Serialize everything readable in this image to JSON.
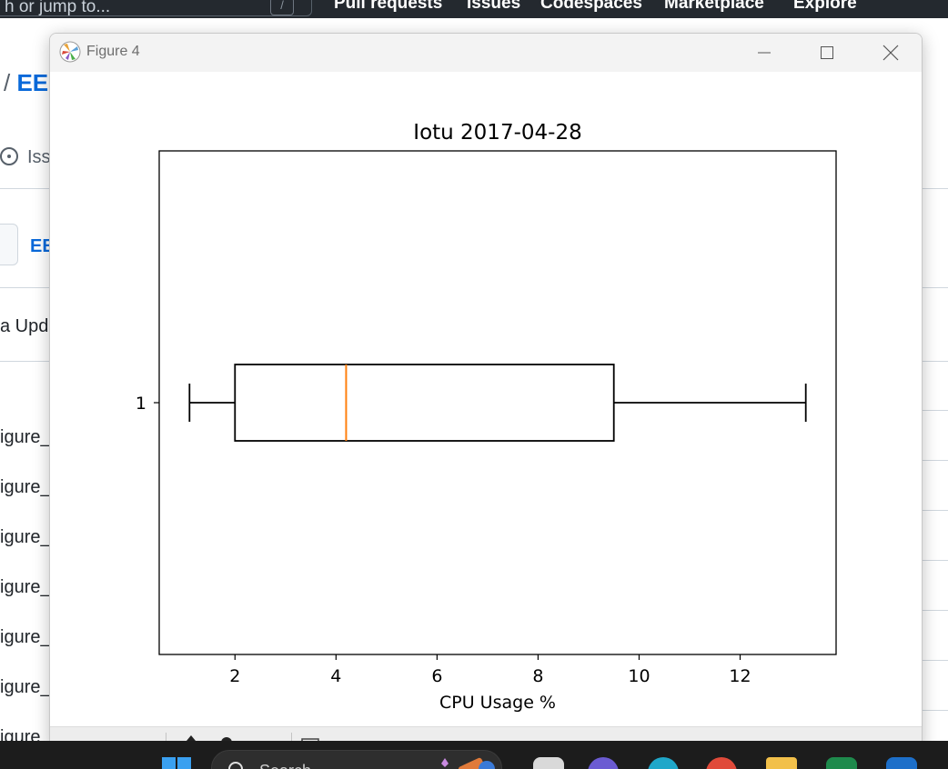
{
  "github": {
    "search_text": "h or jump to...",
    "search_key": "/",
    "nav": [
      "Pull requests",
      "Issues",
      "Codespaces",
      "Marketplace",
      "Explore"
    ],
    "breadcrumb_sep": "/",
    "breadcrumb_repo": "EE",
    "issues_tab": "Iss",
    "branch_link": "EE",
    "commit_message": "a Upda",
    "files": [
      "igure_",
      "igure_",
      "igure_",
      "igure_",
      "igure_",
      "igure_",
      "igure_"
    ]
  },
  "figure_window": {
    "title": "Figure 4"
  },
  "chart_data": {
    "type": "boxplot",
    "orientation": "horizontal",
    "title": "Iotu 2017-04-28",
    "xlabel": "CPU Usage %",
    "ylabel": "",
    "xlim": [
      0.5,
      13.9
    ],
    "xticks": [
      2,
      4,
      6,
      8,
      10,
      12
    ],
    "yticks": [
      "1"
    ],
    "series": [
      {
        "label": "1",
        "whisker_low": 1.1,
        "q1": 2.0,
        "median": 4.2,
        "q3": 9.5,
        "whisker_high": 13.3
      }
    ],
    "colors": {
      "box": "#000000",
      "median": "#ff7f0e"
    },
    "grid": false
  },
  "taskbar": {
    "search_placeholder": "Search"
  }
}
